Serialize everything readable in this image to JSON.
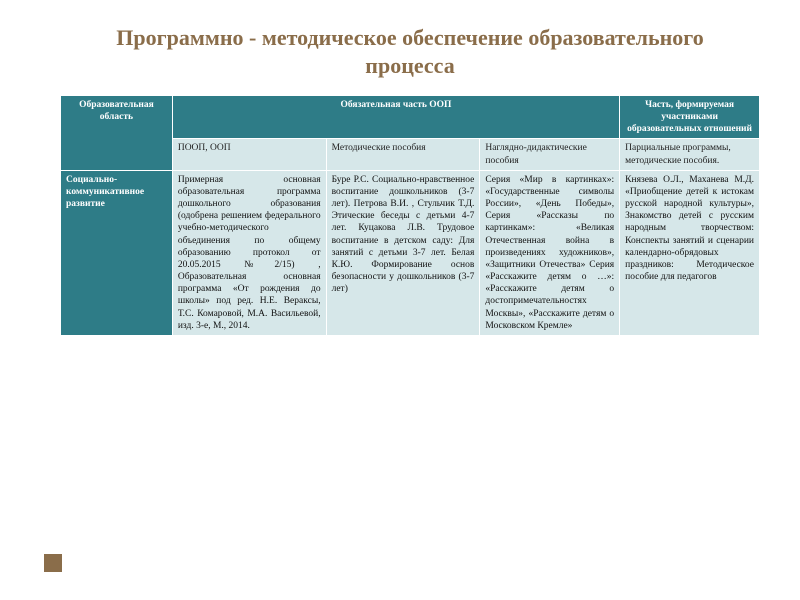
{
  "title": "Программно - методическое обеспечение образовательного процесса",
  "colors": {
    "heading": "#8a6d4a",
    "header_bg": "#2e7c87",
    "header_fg": "#ffffff",
    "cell_bg": "#d6e7e9",
    "cell_fg": "#111111",
    "accent": "#8a6d4a"
  },
  "table": {
    "head": {
      "col1": "Образовательная область",
      "col_span_main": "Обязательная часть ООП",
      "col5": "Часть, формируемая участниками образовательных отношений"
    },
    "subhead": {
      "s2": "ПООП, ООП",
      "s3": "Методические пособия",
      "s4": "Наглядно-дидактические пособия",
      "s5": "Парциальные программы, методические пособия."
    },
    "row": {
      "label": "Социально-коммуникативное развитие",
      "c2": "Примерная основная образовательная программа дошкольного образования (одобрена решением федерального учебно-методического объединения по общему образованию протокол от 20.05.2015 №2/15) , Образовательная основная программа «От рождения до школы» под ред. Н.Е. Вераксы, Т.С. Комаровой, М.А. Васильевой, изд. 3-е, М., 2014.",
      "c3": "Буре Р.С. Социально-нравственное воспитание дошкольников (3-7 лет). Петрова В.И. , Стульчик Т.Д. Этические беседы с детьми 4-7 лет. Куцакова Л.В. Трудовое воспитание в детском саду: Для занятий с детьми 3-7 лет. Белая К.Ю. Формирование основ безопасности у дошкольников (3-7 лет)",
      "c4": "Серия «Мир в картинках»: «Государственные символы России», «День Победы», Серия «Рассказы по картинкам»: «Великая Отечественная война в произведениях художников», «Защитники Отечества» Серия «Расскажите детям о …»: «Расскажите детям о достопримечательностях Москвы», «Расскажите детям о Московском Кремле»",
      "c5": "Князева О.Л., Маханева М.Д. «Приобщение детей к истокам русской народной культуры», Знакомство детей с русским народным творчеством: Конспекты занятий и сценарии календарно-обрядовых праздников: Методическое пособие для педагогов"
    }
  }
}
